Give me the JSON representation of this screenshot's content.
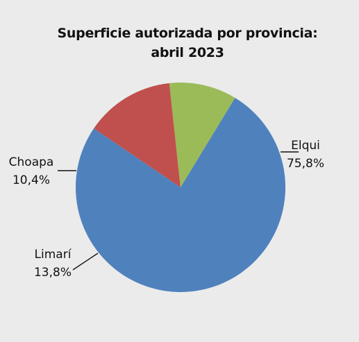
{
  "chart_data": {
    "type": "pie",
    "title_lines": [
      "Superficie autorizada por provincia:",
      "abril 2023"
    ],
    "slices": [
      {
        "label": "Elqui",
        "value": 75.8,
        "display": "75,8%",
        "color": "#4f81bd"
      },
      {
        "label": "Limarí",
        "value": 13.8,
        "display": "13,8%",
        "color": "#c0504d"
      },
      {
        "label": "Choapa",
        "value": 10.4,
        "display": "10,4%",
        "color": "#9bbb59"
      }
    ],
    "legend": "none",
    "data_labels": "outside with leader lines"
  }
}
